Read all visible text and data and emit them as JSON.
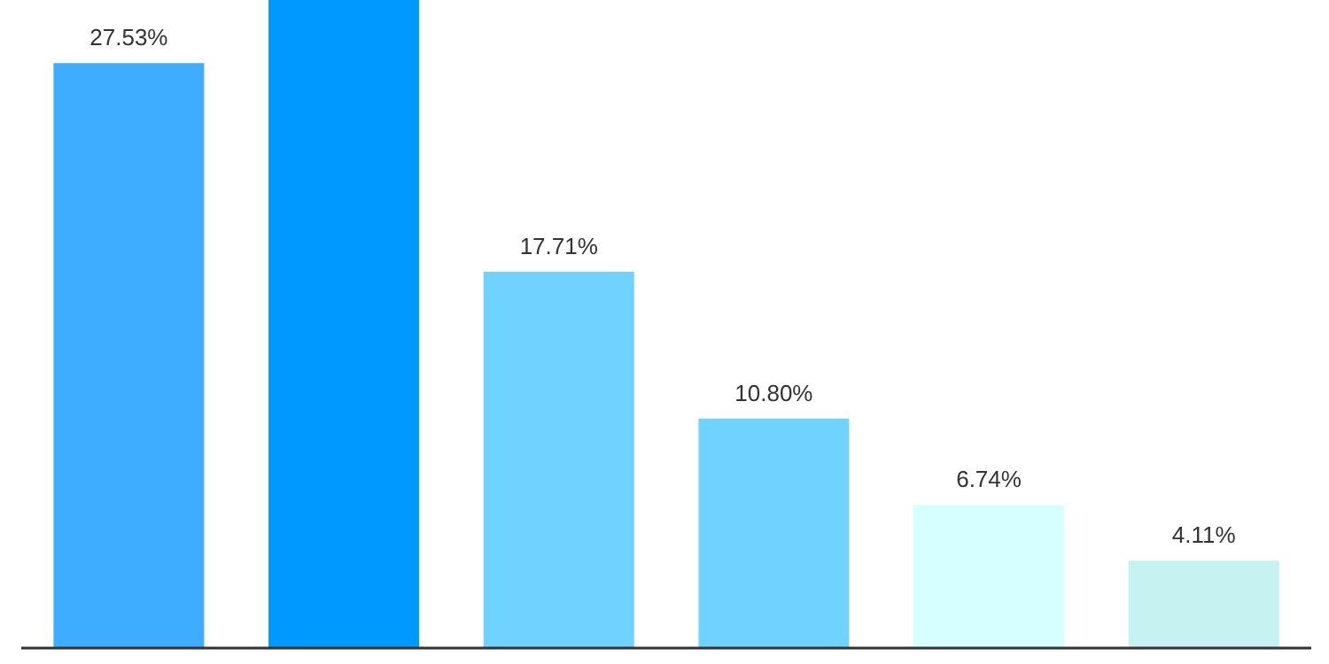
{
  "chart_data": {
    "type": "bar",
    "categories": [
      null,
      null,
      null,
      null,
      null,
      null
    ],
    "values": [
      27.53,
      30.5,
      17.71,
      10.8,
      6.74,
      4.11
    ],
    "colors": [
      "#3fadff",
      "#0099ff",
      "#6fd2ff",
      "#6fd2ff",
      "#d6ffff",
      "#c6f2f2"
    ],
    "value_labels": [
      "27.53%",
      null,
      "17.71%",
      "10.80%",
      "6.74%",
      "4.11%"
    ],
    "ylim": [
      0,
      30.5
    ],
    "tick_labels": false,
    "grid": false
  }
}
